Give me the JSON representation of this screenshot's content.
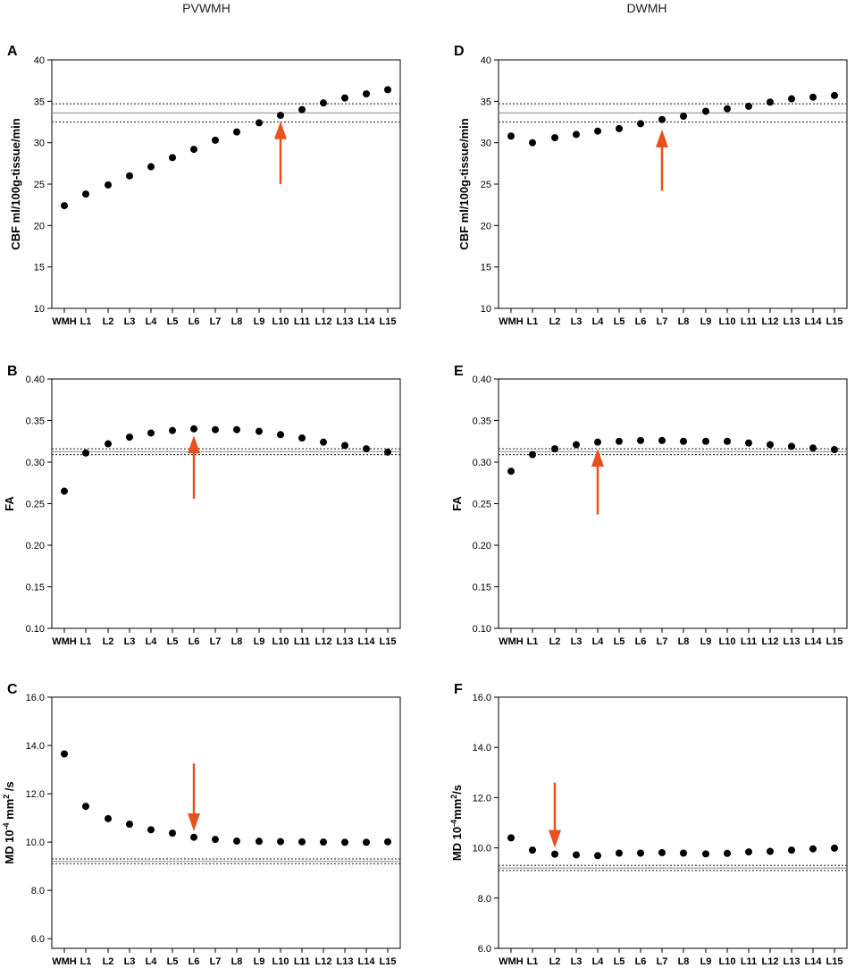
{
  "column_titles": [
    "PVWMH",
    "DWMH"
  ],
  "colors": {
    "points": "#000000",
    "arrow": "#e8501e",
    "ref_solid": "#888888",
    "ref_dotted": "#444444"
  },
  "chart_data": [
    {
      "panel": "A",
      "column": "PVWMH",
      "type": "scatter",
      "ylabel": "CBF ml/100g-tissue/min",
      "ylim": [
        10,
        40
      ],
      "yticks": [
        10,
        15,
        20,
        25,
        30,
        35,
        40
      ],
      "ytick_labels": [
        "10",
        "15",
        "20",
        "25",
        "30",
        "35",
        "40"
      ],
      "categories": [
        "WMH",
        "L1",
        "L2",
        "L3",
        "L4",
        "L5",
        "L6",
        "L7",
        "L8",
        "L9",
        "L10",
        "L11",
        "L12",
        "L13",
        "L14",
        "L15"
      ],
      "values": [
        22.4,
        23.8,
        24.9,
        26.0,
        27.1,
        28.2,
        29.2,
        30.3,
        31.3,
        32.4,
        33.3,
        34.0,
        34.8,
        35.4,
        35.9,
        36.4
      ],
      "reference": {
        "mean": 33.6,
        "lower": 32.5,
        "upper": 34.7
      },
      "arrow": {
        "category": "L10",
        "direction": "up",
        "from": 25.0,
        "to": 32.6
      }
    },
    {
      "panel": "B",
      "column": "PVWMH",
      "type": "scatter",
      "ylabel": "FA",
      "ylim": [
        0.1,
        0.4
      ],
      "yticks": [
        0.1,
        0.15,
        0.2,
        0.25,
        0.3,
        0.35,
        0.4
      ],
      "ytick_labels": [
        "0.10",
        "0.15",
        "0.20",
        "0.25",
        "0.30",
        "0.35",
        "0.40"
      ],
      "categories": [
        "WMH",
        "L1",
        "L2",
        "L3",
        "L4",
        "L5",
        "L6",
        "L7",
        "L8",
        "L9",
        "L10",
        "L11",
        "L12",
        "L13",
        "L14",
        "L15"
      ],
      "values": [
        0.265,
        0.311,
        0.322,
        0.33,
        0.335,
        0.338,
        0.34,
        0.339,
        0.339,
        0.337,
        0.333,
        0.329,
        0.324,
        0.32,
        0.316,
        0.312
      ],
      "reference": {
        "mean": 0.3125,
        "lower": 0.309,
        "upper": 0.316
      },
      "arrow": {
        "category": "L6",
        "direction": "up",
        "from": 0.256,
        "to": 0.332
      }
    },
    {
      "panel": "C",
      "column": "PVWMH",
      "type": "scatter",
      "ylabel": "MD 10^-4 mm^2/s",
      "ylabel_parts": {
        "a": "MD 10",
        "b": "-4",
        "c": " mm",
        "d": "2",
        "e": " /s"
      },
      "ylim": [
        5.6,
        16.0
      ],
      "yticks": [
        6.0,
        8.0,
        10.0,
        12.0,
        14.0,
        16.0
      ],
      "ytick_labels": [
        "6.0",
        "8.0",
        "10.0",
        "12.0",
        "14.0",
        "16.0"
      ],
      "categories": [
        "WMH",
        "L1",
        "L2",
        "L3",
        "L4",
        "L5",
        "L6",
        "L7",
        "L8",
        "L9",
        "L10",
        "L11",
        "L12",
        "L13",
        "L14",
        "L15"
      ],
      "values": [
        13.65,
        11.48,
        10.97,
        10.74,
        10.51,
        10.37,
        10.2,
        10.11,
        10.04,
        10.03,
        10.02,
        10.01,
        10.0,
        9.99,
        9.99,
        10.01
      ],
      "reference": {
        "mean": 9.2,
        "lower": 9.1,
        "upper": 9.3
      },
      "arrow": {
        "category": "L6",
        "direction": "down",
        "from": 13.25,
        "to": 10.45
      }
    },
    {
      "panel": "D",
      "column": "DWMH",
      "type": "scatter",
      "ylabel": "CBF ml/100g-tissue/min",
      "ylim": [
        10,
        40
      ],
      "yticks": [
        10,
        15,
        20,
        25,
        30,
        35,
        40
      ],
      "ytick_labels": [
        "10",
        "15",
        "20",
        "25",
        "30",
        "35",
        "40"
      ],
      "categories": [
        "WMH",
        "L1",
        "L2",
        "L3",
        "L4",
        "L5",
        "L6",
        "L7",
        "L8",
        "L9",
        "L10",
        "L11",
        "L12",
        "L13",
        "L14",
        "L15"
      ],
      "values": [
        30.8,
        30.0,
        30.6,
        31.0,
        31.4,
        31.7,
        32.3,
        32.8,
        33.2,
        33.8,
        34.1,
        34.4,
        34.9,
        35.3,
        35.5,
        35.7
      ],
      "reference": {
        "mean": 33.6,
        "lower": 32.5,
        "upper": 34.7
      },
      "arrow": {
        "category": "L7",
        "direction": "up",
        "from": 24.2,
        "to": 31.6
      }
    },
    {
      "panel": "E",
      "column": "DWMH",
      "type": "scatter",
      "ylabel": "FA",
      "ylim": [
        0.1,
        0.4
      ],
      "yticks": [
        0.1,
        0.15,
        0.2,
        0.25,
        0.3,
        0.35,
        0.4
      ],
      "ytick_labels": [
        "0.10",
        "0.15",
        "0.20",
        "0.25",
        "0.30",
        "0.35",
        "0.40"
      ],
      "categories": [
        "WMH",
        "L1",
        "L2",
        "L3",
        "L4",
        "L5",
        "L6",
        "L7",
        "L8",
        "L9",
        "L10",
        "L11",
        "L12",
        "L13",
        "L14",
        "L15"
      ],
      "values": [
        0.289,
        0.309,
        0.316,
        0.321,
        0.324,
        0.325,
        0.326,
        0.326,
        0.325,
        0.325,
        0.325,
        0.323,
        0.321,
        0.319,
        0.317,
        0.315
      ],
      "reference": {
        "mean": 0.3125,
        "lower": 0.309,
        "upper": 0.316
      },
      "arrow": {
        "category": "L4",
        "direction": "up",
        "from": 0.237,
        "to": 0.316
      }
    },
    {
      "panel": "F",
      "column": "DWMH",
      "type": "scatter",
      "ylabel": "MD 10^-4 mm^2/s",
      "ylabel_parts": {
        "a": "MD 10",
        "b": "-4",
        "c": "mm",
        "d": "2",
        "e": "/s"
      },
      "ylim": [
        6.0,
        16.0
      ],
      "yticks": [
        6.0,
        8.0,
        10.0,
        12.0,
        14.0,
        16.0
      ],
      "ytick_labels": [
        "6.0",
        "8.0",
        "10.0",
        "12.0",
        "14.0",
        "16.0"
      ],
      "categories": [
        "WMH",
        "L1",
        "L2",
        "L3",
        "L4",
        "L5",
        "L6",
        "L7",
        "L8",
        "L9",
        "L10",
        "L11",
        "L12",
        "L13",
        "L14",
        "L15"
      ],
      "values": [
        10.4,
        9.91,
        9.75,
        9.72,
        9.69,
        9.79,
        9.79,
        9.81,
        9.79,
        9.76,
        9.78,
        9.84,
        9.86,
        9.91,
        9.96,
        9.99
      ],
      "reference": {
        "mean": 9.2,
        "lower": 9.1,
        "upper": 9.3
      },
      "arrow": {
        "category": "L2",
        "direction": "down",
        "from": 12.6,
        "to": 10.0
      }
    }
  ]
}
